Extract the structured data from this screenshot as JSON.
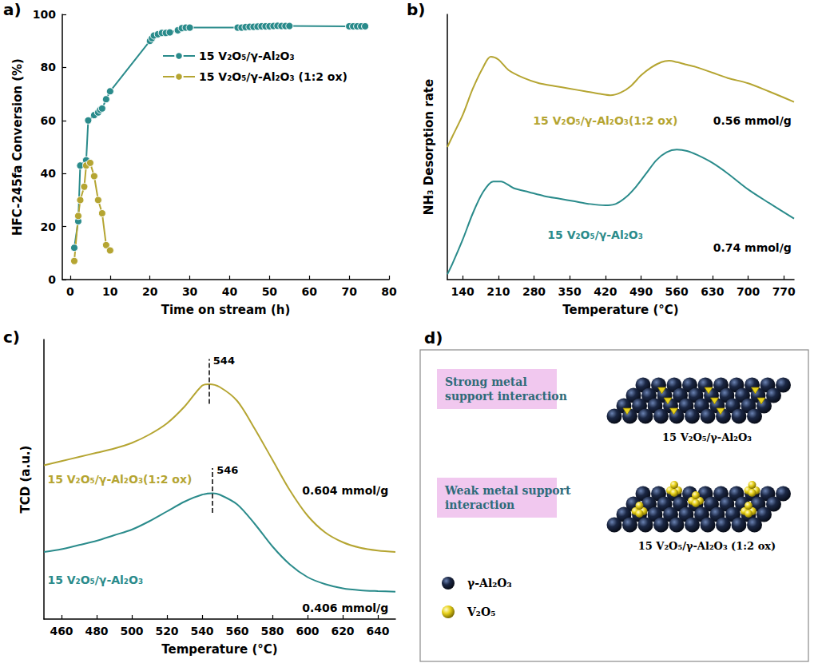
{
  "chart_data": [
    {
      "panel_label": "a)",
      "type": "line",
      "marker": "circle",
      "legend": "top",
      "x_label": "Time on stream (h)",
      "y_label": "HFC-245fa Conversion (%)",
      "xlim": [
        -2,
        80
      ],
      "xticks": [
        0,
        10,
        20,
        30,
        40,
        50,
        60,
        70,
        80
      ],
      "ylim": [
        0,
        100
      ],
      "yticks": [
        0,
        20,
        40,
        60,
        80,
        100
      ],
      "series": [
        {
          "name": "15 V₂O₅/γ-Al₂O₃",
          "color": "#2a8b8b",
          "x": [
            1,
            2,
            2.5,
            4,
            4.5,
            6,
            7,
            7.5,
            8,
            9,
            10,
            20,
            20.5,
            21,
            22,
            23,
            24,
            25,
            27,
            28,
            29,
            30,
            42,
            43,
            44,
            45,
            46,
            47,
            48,
            49,
            50,
            51,
            52,
            53,
            54,
            55,
            70,
            71,
            72,
            73,
            74
          ],
          "values": [
            12,
            22,
            43,
            45,
            60,
            62,
            63,
            64,
            64.5,
            68,
            71,
            90,
            91,
            92,
            92.5,
            93,
            93,
            93.2,
            94,
            94.8,
            95,
            95,
            95,
            95,
            95.2,
            95.3,
            95.3,
            95.4,
            95.5,
            95.5,
            95.5,
            95.6,
            95.7,
            95.6,
            95.6,
            95.6,
            95.5,
            95.5,
            95.5,
            95.5,
            95.5
          ]
        },
        {
          "name": "15 V₂O₅/γ-Al₂O₃ (1:2 ox)",
          "color": "#b5a532",
          "x": [
            1,
            2,
            2.5,
            3.5,
            4,
            5,
            6,
            7,
            8,
            9,
            10
          ],
          "values": [
            7,
            24,
            30,
            35,
            43,
            44,
            39,
            30,
            25,
            13,
            11
          ]
        }
      ]
    },
    {
      "panel_label": "b)",
      "type": "line",
      "tick_labels": "x",
      "x_label": "Temperature (°C)",
      "y_label": "NH₃ Desorption rate",
      "xlim": [
        110,
        790
      ],
      "xticks": [
        140,
        210,
        280,
        350,
        420,
        490,
        560,
        630,
        700,
        770
      ],
      "ylim": [
        0,
        100
      ],
      "series": [
        {
          "name": "15 V₂O₅/γ-Al₂O₃(1:2 ox)",
          "color": "#b5a532",
          "note": "0.56 mmol/g",
          "x": [
            110,
            120,
            140,
            160,
            180,
            195,
            210,
            230,
            260,
            290,
            320,
            350,
            380,
            410,
            430,
            450,
            470,
            490,
            510,
            530,
            545,
            560,
            580,
            600,
            630,
            660,
            700,
            740,
            790
          ],
          "values": [
            50,
            54,
            62,
            72,
            80,
            84,
            83,
            79,
            76,
            74,
            73,
            72,
            71,
            70,
            69.5,
            70.5,
            73,
            77,
            80,
            82,
            82.5,
            82,
            81,
            80,
            78,
            76,
            74,
            71,
            67
          ]
        },
        {
          "name": "15 V₂O₅/γ-Al₂O₃",
          "color": "#2a8b8b",
          "note": "0.74 mmol/g",
          "x": [
            110,
            120,
            140,
            160,
            180,
            200,
            215,
            240,
            270,
            300,
            330,
            360,
            390,
            420,
            440,
            460,
            480,
            500,
            520,
            540,
            560,
            580,
            600,
            630,
            660,
            700,
            740,
            790
          ],
          "values": [
            2,
            6,
            15,
            25,
            33,
            37,
            37,
            34.5,
            33,
            31.5,
            30.5,
            29.5,
            28.5,
            28,
            28.5,
            31,
            35,
            40,
            45,
            48,
            49,
            48.5,
            47,
            44,
            40,
            34,
            29,
            23
          ]
        }
      ]
    },
    {
      "panel_label": "c)",
      "type": "line",
      "tick_labels": "x",
      "x_label": "Temperature (°C)",
      "y_label": "TCD (a.u.)",
      "xlim": [
        450,
        650
      ],
      "xticks": [
        460,
        480,
        500,
        520,
        540,
        560,
        580,
        600,
        620,
        640
      ],
      "ylim": [
        0,
        100
      ],
      "series": [
        {
          "name": "15 V₂O₅/γ-Al₂O₃(1:2 ox)",
          "color": "#b5a532",
          "note": "0.604 mmol/g",
          "peak": 544,
          "x": [
            450,
            460,
            470,
            480,
            490,
            500,
            510,
            520,
            530,
            540,
            544,
            550,
            560,
            570,
            580,
            590,
            600,
            610,
            620,
            630,
            640,
            650
          ],
          "values": [
            55,
            56.5,
            58,
            59.5,
            61,
            63,
            66,
            70,
            76,
            83.5,
            84,
            83,
            78,
            68,
            57,
            46,
            37,
            31,
            27.5,
            25.5,
            24.5,
            24
          ]
        },
        {
          "name": "15 V₂O₅/γ-Al₂O₃",
          "color": "#2a8b8b",
          "note": "0.406 mmol/g",
          "peak": 546,
          "x": [
            450,
            460,
            470,
            480,
            490,
            500,
            510,
            520,
            530,
            540,
            546,
            550,
            560,
            570,
            580,
            590,
            600,
            610,
            620,
            630,
            640,
            650
          ],
          "values": [
            24,
            25,
            26.5,
            28,
            30,
            32,
            35,
            38.5,
            42,
            44.5,
            45,
            44.5,
            41,
            34,
            26,
            19.5,
            15,
            12.5,
            11,
            10.3,
            10,
            9.8
          ]
        }
      ]
    }
  ],
  "diagram": {
    "panel_label": "d)",
    "rows": [
      {
        "box": "Strong metal support interaction",
        "caption": "15 V₂O₅/γ-Al₂O₃"
      },
      {
        "box": "Weak metal support interaction",
        "caption": "15 V₂O₅/γ-Al₂O₃ (1:2 ox)"
      }
    ],
    "key": [
      {
        "label": "γ-Al₂O₃",
        "color": "#1b2744"
      },
      {
        "label": "V₂O₅",
        "color": "#e8d21c"
      }
    ]
  }
}
